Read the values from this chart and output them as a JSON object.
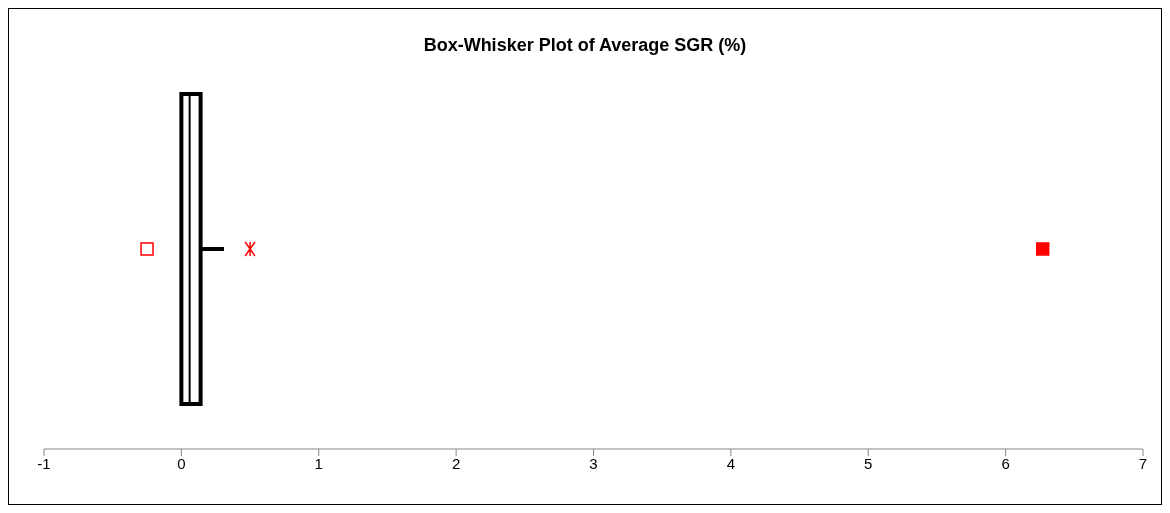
{
  "chart_data": {
    "type": "box",
    "title": "Box-Whisker Plot of Average SGR (%)",
    "orientation": "horizontal",
    "categories": [
      null
    ],
    "boxes": [
      {
        "low": 0,
        "q1": 0,
        "median": 0.06,
        "q3": 0.14,
        "high": 0.31,
        "mean": 0.5,
        "outliers": [
          -0.25,
          6.27
        ]
      }
    ],
    "color": "#000000",
    "xlim": [
      -1,
      7
    ],
    "xticks": [
      -1,
      0,
      1,
      2,
      3,
      4,
      5,
      6,
      7
    ],
    "grid": false
  }
}
